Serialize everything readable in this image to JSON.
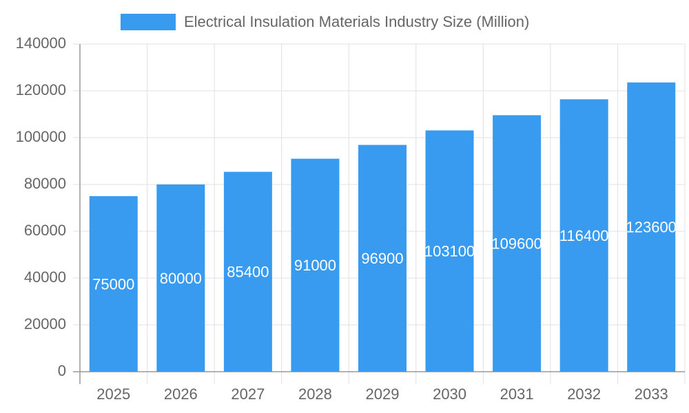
{
  "chart_data": {
    "type": "bar",
    "categories": [
      "2025",
      "2026",
      "2027",
      "2028",
      "2029",
      "2030",
      "2031",
      "2032",
      "2033"
    ],
    "series": [
      {
        "name": "Electrical Insulation Materials Industry Size (Million)",
        "color": "#389bf0",
        "values": [
          75000,
          80000,
          85400,
          91000,
          96900,
          103100,
          109600,
          116400,
          123600
        ]
      }
    ],
    "ylim": [
      0,
      140000
    ],
    "yticks": [
      0,
      20000,
      40000,
      60000,
      80000,
      100000,
      120000,
      140000
    ],
    "grid": true,
    "legend": "top"
  }
}
